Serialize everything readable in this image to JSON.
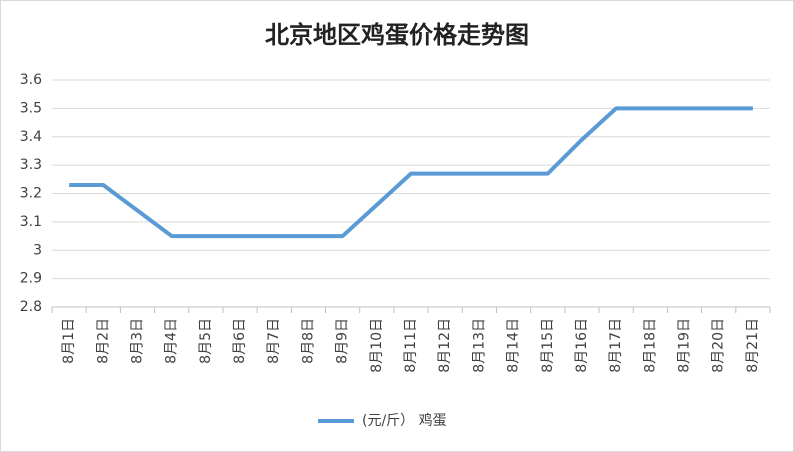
{
  "chart_data": {
    "type": "line",
    "title": "北京地区鸡蛋价格走势图",
    "categories": [
      "8月1日",
      "8月2日",
      "8月3日",
      "8月4日",
      "8月5日",
      "8月6日",
      "8月7日",
      "8月8日",
      "8月9日",
      "8月10日",
      "8月11日",
      "8月12日",
      "8月13日",
      "8月14日",
      "8月15日",
      "8月16日",
      "8月17日",
      "8月18日",
      "8月19日",
      "8月20日",
      "8月21日"
    ],
    "series": [
      {
        "name": "(元/斤） 鸡蛋",
        "color": "#5b9bd5",
        "values": [
          3.23,
          3.23,
          3.14,
          3.05,
          3.05,
          3.05,
          3.05,
          3.05,
          3.05,
          3.16,
          3.27,
          3.27,
          3.27,
          3.27,
          3.27,
          3.39,
          3.5,
          3.5,
          3.5,
          3.5,
          3.5
        ]
      }
    ],
    "ylim": [
      2.8,
      3.6
    ],
    "yticks": [
      2.8,
      2.9,
      3,
      3.1,
      3.2,
      3.3,
      3.4,
      3.5,
      3.6
    ],
    "grid": true,
    "legend": "bottom"
  }
}
